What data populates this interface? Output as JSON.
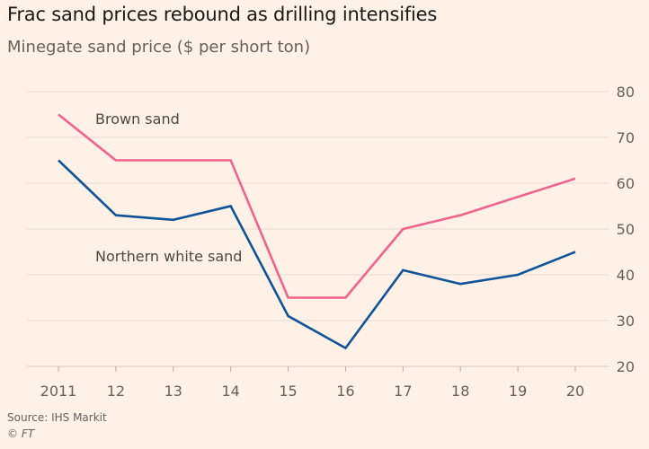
{
  "title": "Frac sand prices rebound as drilling intensifies",
  "subtitle": "Minegate sand price ($ per short ton)",
  "source": "Source: IHS Markit",
  "credit": "© FT",
  "colors": {
    "background": "#fff1e5",
    "brown_sand": "#f0628f",
    "northern_white_sand": "#0f5499",
    "grid": "#e6d9ce",
    "axis_text": "#66605c"
  },
  "chart_data": {
    "type": "line",
    "categories": [
      "2011",
      "12",
      "13",
      "14",
      "15",
      "16",
      "17",
      "18",
      "19",
      "20"
    ],
    "series": [
      {
        "name": "Brown sand",
        "values": [
          75,
          65,
          65,
          65,
          35,
          35,
          50,
          53,
          57,
          61
        ]
      },
      {
        "name": "Northern white sand",
        "values": [
          65,
          53,
          52,
          55,
          31,
          24,
          41,
          38,
          40,
          45
        ]
      }
    ],
    "ylim": [
      20,
      80
    ],
    "yticks": [
      20,
      30,
      40,
      50,
      60,
      70,
      80
    ],
    "grid": true,
    "y_axis_side": "right",
    "legend": "inline labels"
  }
}
